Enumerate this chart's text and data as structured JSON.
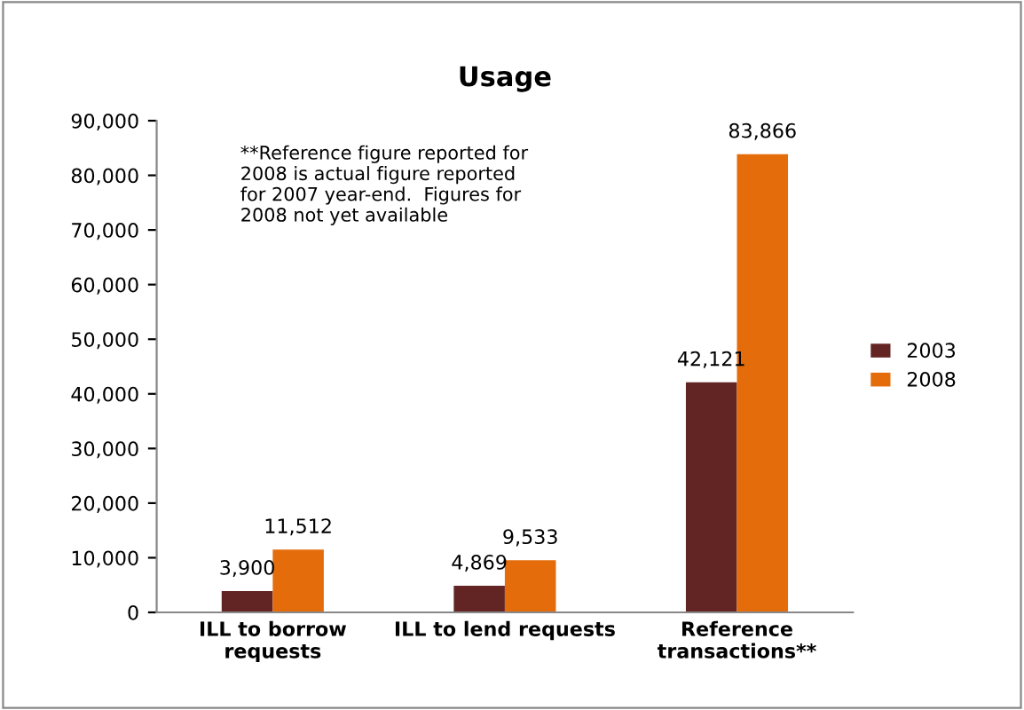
{
  "chart_data": {
    "type": "bar",
    "title": "Usage",
    "categories": [
      "ILL to borrow\nrequests",
      "ILL to lend requests",
      "Reference\ntransactions**"
    ],
    "series": [
      {
        "name": "2003",
        "color": "#632523",
        "values": [
          3900,
          4869,
          42121
        ],
        "value_labels": [
          "3,900",
          "4,869",
          "42,121"
        ]
      },
      {
        "name": "2008",
        "color": "#e46c0a",
        "values": [
          11512,
          9533,
          83866
        ],
        "value_labels": [
          "11,512",
          "9,533",
          "83,866"
        ]
      }
    ],
    "ylim": [
      0,
      90000
    ],
    "yticks": [
      0,
      {
        "value": 10000,
        "label": "10,000"
      },
      {
        "value": 20000,
        "label": "20,000"
      },
      {
        "value": 30000,
        "label": "30,000"
      },
      {
        "value": 40000,
        "label": "40,000"
      },
      {
        "value": 50000,
        "label": "50,000"
      },
      {
        "value": 60000,
        "label": "60,000"
      },
      {
        "value": 70000,
        "label": "70,000"
      },
      {
        "value": 80000,
        "label": "80,000"
      },
      {
        "value": 90000,
        "label": "90,000"
      }
    ],
    "annotations": [
      "**Reference figure reported for\n2008 is actual figure reported\nfor 2007 year-end.  Figures for\n2008 not yet available"
    ],
    "grid": false,
    "legend": "right"
  }
}
